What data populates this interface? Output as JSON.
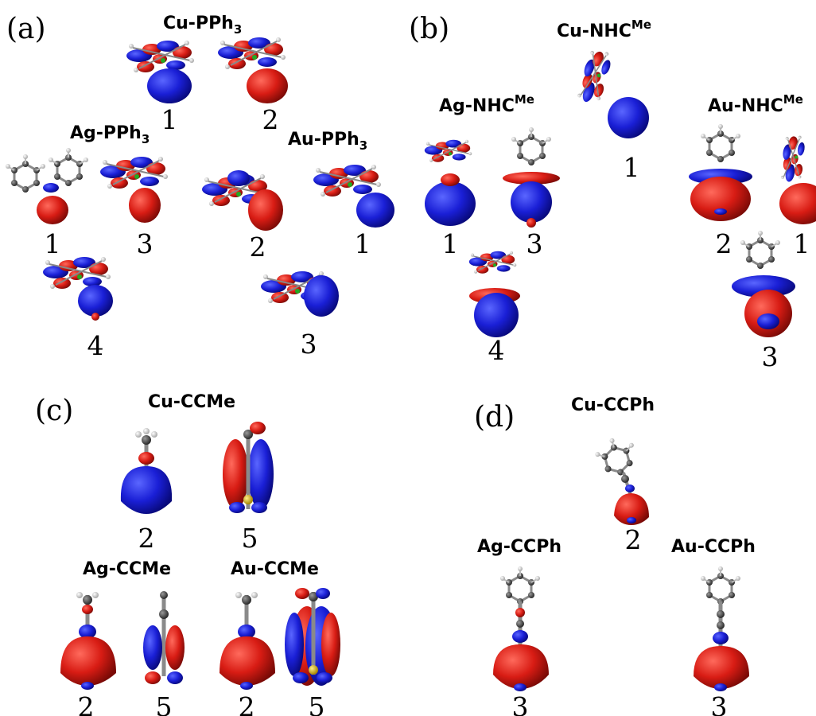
{
  "colors": {
    "lobe_pos": "#d81c14",
    "lobe_neg": "#1a1fd6",
    "bond": "#8a8a8a",
    "atom_c": "#3c3c3c",
    "atom_h": "#e8e8e8",
    "metal": "#d4b01a"
  },
  "panels": {
    "a": {
      "label": "(a)",
      "groups": [
        {
          "name": "Cu-PPh",
          "sub": "3",
          "indices": [
            "1",
            "2"
          ]
        },
        {
          "name": "Ag-PPh",
          "sub": "3",
          "indices": [
            "1",
            "3",
            "4"
          ]
        },
        {
          "name": "Au-PPh",
          "sub": "3",
          "indices": [
            "2",
            "1",
            "3"
          ]
        }
      ]
    },
    "b": {
      "label": "(b)",
      "groups": [
        {
          "name": "Cu-NHC",
          "sup": "Me",
          "indices": [
            "1"
          ]
        },
        {
          "name": "Ag-NHC",
          "sup": "Me",
          "indices": [
            "1",
            "3",
            "4"
          ]
        },
        {
          "name": "Au-NHC",
          "sup": "Me",
          "indices": [
            "2",
            "1",
            "3"
          ]
        }
      ]
    },
    "c": {
      "label": "(c)",
      "groups": [
        {
          "name": "Cu-CCMe",
          "indices": [
            "2",
            "5"
          ]
        },
        {
          "name": "Ag-CCMe",
          "indices": [
            "2",
            "5"
          ]
        },
        {
          "name": "Au-CCMe",
          "indices": [
            "2",
            "5"
          ]
        }
      ]
    },
    "d": {
      "label": "(d)",
      "groups": [
        {
          "name": "Cu-CCPh",
          "indices": [
            "2"
          ]
        },
        {
          "name": "Ag-CCPh",
          "indices": [
            "3"
          ]
        },
        {
          "name": "Au-CCPh",
          "indices": [
            "3"
          ]
        }
      ]
    }
  }
}
